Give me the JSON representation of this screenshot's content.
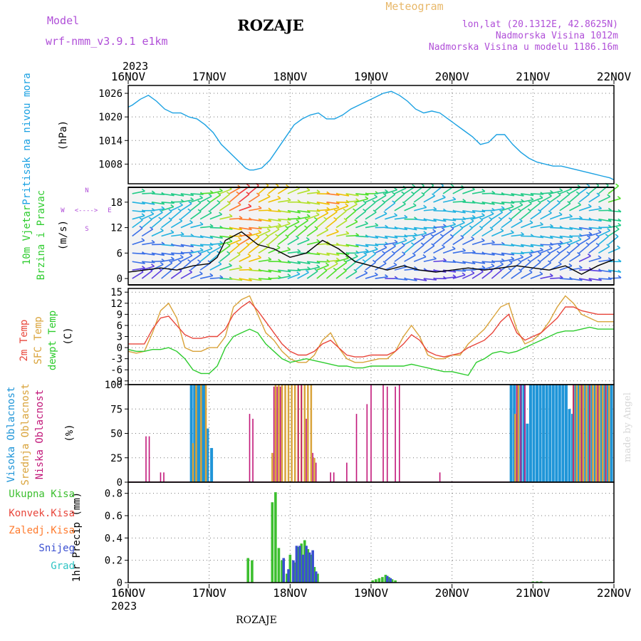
{
  "header": {
    "model_label": "Model",
    "model_name": "wrf-nmm_v3.9.1  e1km",
    "station": "ROZAJE",
    "product": "Meteogram",
    "lonlat": "lon,lat (20.1312E, 42.8625N)",
    "elevation": "Nadmorska Visina 1012m",
    "model_elevation": "Nadmorska Visina u modelu 1186.16m",
    "year_top": "2023",
    "year_bottom": "2023",
    "footer_station": "ROZAJE",
    "credit": "made by Angel"
  },
  "colors": {
    "pressure": "#1ba1e2",
    "temp2m": "#e8463b",
    "sfc": "#d9a33a",
    "dewpt": "#2ecc2e",
    "high_cloud": "#1f95d8",
    "mid_cloud": "#d9a33a",
    "low_cloud": "#c2187a",
    "total_precip": "#3cbf2f",
    "conv_precip": "#e8463b",
    "frozen_precip": "#ff7b2e",
    "snow": "#3a4fd1",
    "graupel": "#2ec4c4",
    "model_text": "#b04fd8",
    "meteogram_text": "#e8b86a"
  },
  "chart_data": [
    {
      "type": "line",
      "panel": "pressure",
      "ylabel_top": "Pritisak na nivou mora",
      "ylabel_unit": "(hPa)",
      "yticks": [
        1008,
        1014,
        1020,
        1026
      ],
      "ylim": [
        1003,
        1028
      ],
      "x_days": [
        "16NOV",
        "17NOV",
        "18NOV",
        "19NOV",
        "20NOV",
        "21NOV",
        "22NOV"
      ],
      "series": [
        {
          "name": "Pritisak na nivou mora",
          "x": [
            0,
            0.05,
            0.15,
            0.25,
            0.35,
            0.45,
            0.55,
            0.65,
            0.75,
            0.85,
            0.95,
            1.05,
            1.15,
            1.25,
            1.35,
            1.45,
            1.5,
            1.55,
            1.65,
            1.75,
            1.85,
            1.95,
            2.05,
            2.15,
            2.25,
            2.35,
            2.45,
            2.55,
            2.65,
            2.75,
            2.85,
            2.95,
            3.05,
            3.15,
            3.25,
            3.35,
            3.45,
            3.55,
            3.65,
            3.75,
            3.85,
            3.95,
            4.05,
            4.15,
            4.25,
            4.35,
            4.45,
            4.55,
            4.65,
            4.75,
            4.85,
            4.95,
            5.05,
            5.15,
            5.25,
            5.35,
            5.45,
            5.55,
            5.65,
            5.75,
            5.85,
            5.95,
            6.0
          ],
          "values": [
            1022.5,
            1023,
            1024.5,
            1025.5,
            1024,
            1022,
            1021,
            1021,
            1020,
            1019.5,
            1018,
            1016,
            1013,
            1011,
            1009,
            1007,
            1006.5,
            1006.5,
            1007,
            1009,
            1012,
            1015,
            1018,
            1019.5,
            1020.5,
            1021,
            1019.5,
            1019.5,
            1020.5,
            1022,
            1023,
            1024,
            1025,
            1026,
            1026.5,
            1025.5,
            1024,
            1022,
            1021,
            1021.5,
            1021,
            1019.5,
            1018,
            1016.5,
            1015,
            1013,
            1013.5,
            1015.5,
            1015.5,
            1013,
            1011,
            1009.5,
            1008.5,
            1008,
            1007.5,
            1007.5,
            1007,
            1006.5,
            1006,
            1005.5,
            1005,
            1004.5,
            1004
          ]
        }
      ]
    },
    {
      "type": "line",
      "panel": "wind",
      "ylabel_top": "10m Vjetar",
      "ylabel_bottom": "Brzina i Pravac",
      "ylabel_unit": "(m/s)",
      "compass": [
        "N",
        "W",
        "E",
        "S",
        "<---->"
      ],
      "yticks": [
        0,
        6,
        12,
        18
      ],
      "ylim": [
        -1.5,
        21.5
      ],
      "series": [
        {
          "name": "Brzina",
          "x": [
            0,
            0.2,
            0.4,
            0.6,
            0.8,
            1.0,
            1.1,
            1.2,
            1.3,
            1.4,
            1.6,
            1.8,
            2.0,
            2.2,
            2.4,
            2.6,
            2.8,
            3.0,
            3.2,
            3.4,
            3.6,
            3.8,
            4.0,
            4.2,
            4.4,
            4.6,
            4.8,
            5.0,
            5.2,
            5.4,
            5.6,
            5.8,
            6.0
          ],
          "values": [
            1.5,
            2,
            2.5,
            2,
            3,
            3.5,
            5,
            9,
            10,
            11,
            8,
            7,
            5,
            6,
            9,
            7,
            4,
            3,
            2,
            3,
            2,
            1.5,
            2,
            2.5,
            2,
            2.5,
            3,
            2.5,
            2,
            3,
            1,
            3,
            4.5
          ]
        }
      ]
    },
    {
      "type": "line",
      "panel": "temperature",
      "ylabel_top": "2m Temp",
      "ylabel_mid": "SFC Temp",
      "ylabel_bottom": "dewpt Temp",
      "ylabel_unit": "(C)",
      "yticks": [
        -9,
        -6,
        -3,
        0,
        3,
        6,
        9,
        12,
        15
      ],
      "ylim": [
        -10,
        16
      ],
      "series": [
        {
          "name": "2m Temp",
          "x": [
            0,
            0.1,
            0.2,
            0.3,
            0.4,
            0.5,
            0.6,
            0.7,
            0.8,
            0.9,
            1.0,
            1.1,
            1.2,
            1.3,
            1.4,
            1.5,
            1.6,
            1.7,
            1.8,
            1.9,
            2.0,
            2.1,
            2.2,
            2.3,
            2.4,
            2.5,
            2.6,
            2.7,
            2.8,
            2.9,
            3.0,
            3.1,
            3.2,
            3.3,
            3.4,
            3.5,
            3.6,
            3.7,
            3.8,
            3.9,
            4.0,
            4.1,
            4.2,
            4.3,
            4.4,
            4.5,
            4.6,
            4.7,
            4.8,
            4.9,
            5.0,
            5.1,
            5.2,
            5.3,
            5.4,
            5.5,
            5.6,
            5.7,
            5.8,
            5.9,
            6.0
          ],
          "values": [
            1,
            1,
            1,
            5,
            8,
            8.5,
            6,
            3.5,
            2.5,
            2.5,
            3,
            3,
            5,
            9,
            11,
            12.5,
            10,
            7,
            4,
            1,
            -1,
            -2,
            -2,
            -1,
            1,
            2,
            0,
            -2,
            -2.5,
            -2.5,
            -2,
            -2,
            -2,
            -1,
            1,
            3.5,
            2,
            -1,
            -2,
            -2.5,
            -2,
            -1.5,
            0,
            1,
            2,
            4,
            7,
            9,
            4,
            2,
            3,
            4,
            6,
            8,
            11,
            11,
            10,
            9.5,
            9,
            9,
            9
          ]
        },
        {
          "name": "SFC Temp",
          "x": [
            0,
            0.1,
            0.2,
            0.3,
            0.4,
            0.5,
            0.6,
            0.7,
            0.8,
            0.9,
            1.0,
            1.1,
            1.2,
            1.3,
            1.4,
            1.5,
            1.6,
            1.7,
            1.8,
            1.9,
            2.0,
            2.1,
            2.2,
            2.3,
            2.4,
            2.5,
            2.6,
            2.7,
            2.8,
            2.9,
            3.0,
            3.1,
            3.2,
            3.3,
            3.4,
            3.5,
            3.6,
            3.7,
            3.8,
            3.9,
            4.0,
            4.1,
            4.2,
            4.3,
            4.4,
            4.5,
            4.6,
            4.7,
            4.8,
            4.9,
            5.0,
            5.1,
            5.2,
            5.3,
            5.4,
            5.5,
            5.6,
            5.7,
            5.8,
            5.9,
            6.0
          ],
          "values": [
            -1,
            -1.5,
            -1,
            4,
            10,
            12,
            8,
            0,
            -1,
            -1,
            0,
            0,
            3,
            11,
            13,
            14,
            9,
            4,
            2,
            -1,
            -3,
            -4,
            -4,
            -2,
            2,
            4,
            0,
            -3,
            -4,
            -4,
            -3.5,
            -3,
            -3,
            -1,
            3,
            6,
            3,
            -2,
            -3,
            -3,
            -2,
            -2,
            1,
            3,
            5,
            8,
            11,
            12,
            5,
            1,
            2,
            4,
            7,
            11,
            14,
            12,
            9,
            8,
            7,
            7,
            7
          ]
        },
        {
          "name": "dewpt Temp",
          "x": [
            0,
            0.1,
            0.2,
            0.3,
            0.4,
            0.5,
            0.6,
            0.7,
            0.8,
            0.9,
            1.0,
            1.1,
            1.2,
            1.3,
            1.4,
            1.5,
            1.6,
            1.7,
            1.8,
            1.9,
            2.0,
            2.1,
            2.2,
            2.3,
            2.4,
            2.5,
            2.6,
            2.7,
            2.8,
            2.9,
            3.0,
            3.1,
            3.2,
            3.3,
            3.4,
            3.5,
            3.6,
            3.7,
            3.8,
            3.9,
            4.0,
            4.1,
            4.2,
            4.3,
            4.4,
            4.5,
            4.6,
            4.7,
            4.8,
            4.9,
            5.0,
            5.1,
            5.2,
            5.3,
            5.4,
            5.5,
            5.6,
            5.7,
            5.8,
            5.9,
            6.0
          ],
          "values": [
            -0.5,
            -1,
            -1,
            -0.5,
            -0.5,
            0,
            -1,
            -3,
            -6,
            -7,
            -7,
            -5,
            0,
            3,
            4,
            5,
            4,
            1,
            -1,
            -3,
            -4,
            -3.5,
            -3,
            -3.5,
            -4,
            -4.5,
            -5,
            -5,
            -5.5,
            -5.5,
            -5,
            -5,
            -5,
            -5,
            -5,
            -4.5,
            -5,
            -5.5,
            -6,
            -6.5,
            -6.5,
            -7,
            -7.5,
            -4,
            -3,
            -1.5,
            -1,
            -1.5,
            -1,
            0,
            1,
            2,
            3,
            4,
            4.5,
            4.5,
            5,
            5.5,
            5,
            5,
            5
          ]
        }
      ]
    },
    {
      "type": "bar",
      "panel": "cloud",
      "ylabel_top": "Visoka Oblacnost",
      "ylabel_mid": "Srednja Oblacnost",
      "ylabel_bottom": "Niska Oblacnost",
      "ylabel_unit": "(%)",
      "yticks": [
        0,
        25,
        50,
        75,
        100
      ],
      "ylim": [
        0,
        100
      ],
      "series": [
        {
          "name": "Visoka Oblacnost",
          "x": [
            0.78,
            0.82,
            0.86,
            0.88,
            0.92,
            0.95,
            0.98,
            1.03,
            4.73,
            4.77,
            4.81,
            4.85,
            4.89,
            4.93,
            4.97,
            5.01,
            5.05,
            5.09,
            5.13,
            5.17,
            5.21,
            5.25,
            5.29,
            5.33,
            5.37,
            5.41,
            5.45,
            5.49,
            5.53,
            5.57,
            5.61,
            5.65,
            5.69,
            5.73,
            5.77,
            5.81,
            5.85,
            5.89,
            5.93,
            5.97
          ],
          "values": [
            100,
            100,
            100,
            100,
            100,
            100,
            55,
            35,
            100,
            100,
            100,
            100,
            100,
            60,
            100,
            100,
            100,
            100,
            100,
            100,
            100,
            100,
            100,
            100,
            100,
            100,
            75,
            70,
            100,
            100,
            100,
            100,
            100,
            100,
            100,
            100,
            100,
            100,
            100,
            100
          ]
        },
        {
          "name": "Srednja Oblacnost",
          "x": [
            0.8,
            0.84,
            0.9,
            0.96,
            1.78,
            1.82,
            1.86,
            1.9,
            1.94,
            1.98,
            2.02,
            2.06,
            2.1,
            2.14,
            2.18,
            2.22,
            2.26,
            2.3,
            4.78,
            4.82,
            5.5,
            5.54,
            5.58,
            5.62,
            5.66,
            5.7,
            5.74,
            5.78,
            5.82,
            5.86,
            5.9,
            5.94
          ],
          "values": [
            40,
            100,
            100,
            100,
            30,
            100,
            100,
            100,
            100,
            100,
            100,
            100,
            100,
            100,
            100,
            100,
            100,
            25,
            70,
            100,
            100,
            100,
            100,
            100,
            100,
            100,
            100,
            100,
            100,
            100,
            100,
            100
          ]
        },
        {
          "name": "Niska Oblacnost",
          "x": [
            0.22,
            0.26,
            0.4,
            0.44,
            1.5,
            1.54,
            1.8,
            1.84,
            1.88,
            2.1,
            2.14,
            2.2,
            2.28,
            2.32,
            2.5,
            2.54,
            2.7,
            2.82,
            2.95,
            3.0,
            3.15,
            3.2,
            3.3,
            3.35,
            3.85,
            4.8,
            4.85,
            4.9,
            5.5,
            5.6,
            5.7,
            5.8,
            5.9
          ],
          "values": [
            47,
            47,
            10,
            10,
            70,
            65,
            98,
            98,
            98,
            100,
            100,
            65,
            30,
            20,
            10,
            10,
            20,
            70,
            80,
            100,
            100,
            98,
            98,
            100,
            10,
            100,
            100,
            100,
            100,
            100,
            100,
            100,
            100
          ]
        }
      ]
    },
    {
      "type": "bar",
      "panel": "precip",
      "ylabel": "1hr Precip (mm)",
      "legend": [
        "Ukupna Kisa",
        "Konvek.Kisa",
        "Zaledj.Kisa",
        "Snijeg",
        "Grad"
      ],
      "yticks": [
        0,
        0.2,
        0.4,
        0.6,
        0.8
      ],
      "ylim": [
        0,
        0.9
      ],
      "series": [
        {
          "name": "Ukupna Kisa",
          "x": [
            1.48,
            1.53,
            1.78,
            1.82,
            1.86,
            1.9,
            1.96,
            2.0,
            2.06,
            2.1,
            2.14,
            2.18,
            2.22,
            2.26,
            2.3,
            2.34,
            3.02,
            3.06,
            3.1,
            3.14,
            3.18,
            3.22,
            3.26,
            3.3,
            5.0,
            5.05,
            5.1
          ],
          "values": [
            0.22,
            0.2,
            0.72,
            0.81,
            0.31,
            0.2,
            0.08,
            0.25,
            0.18,
            0.32,
            0.35,
            0.38,
            0.3,
            0.25,
            0.14,
            0.08,
            0.02,
            0.03,
            0.04,
            0.05,
            0.07,
            0.05,
            0.03,
            0.02,
            0.01,
            0.01,
            0.01
          ]
        },
        {
          "name": "Snijeg",
          "x": [
            1.92,
            1.98,
            2.04,
            2.08,
            2.12,
            2.16,
            2.2,
            2.24,
            2.28,
            2.32,
            3.2,
            3.24
          ],
          "values": [
            0.22,
            0.12,
            0.2,
            0.33,
            0.33,
            0.25,
            0.33,
            0.27,
            0.29,
            0.1,
            0.06,
            0.04
          ]
        }
      ]
    }
  ]
}
